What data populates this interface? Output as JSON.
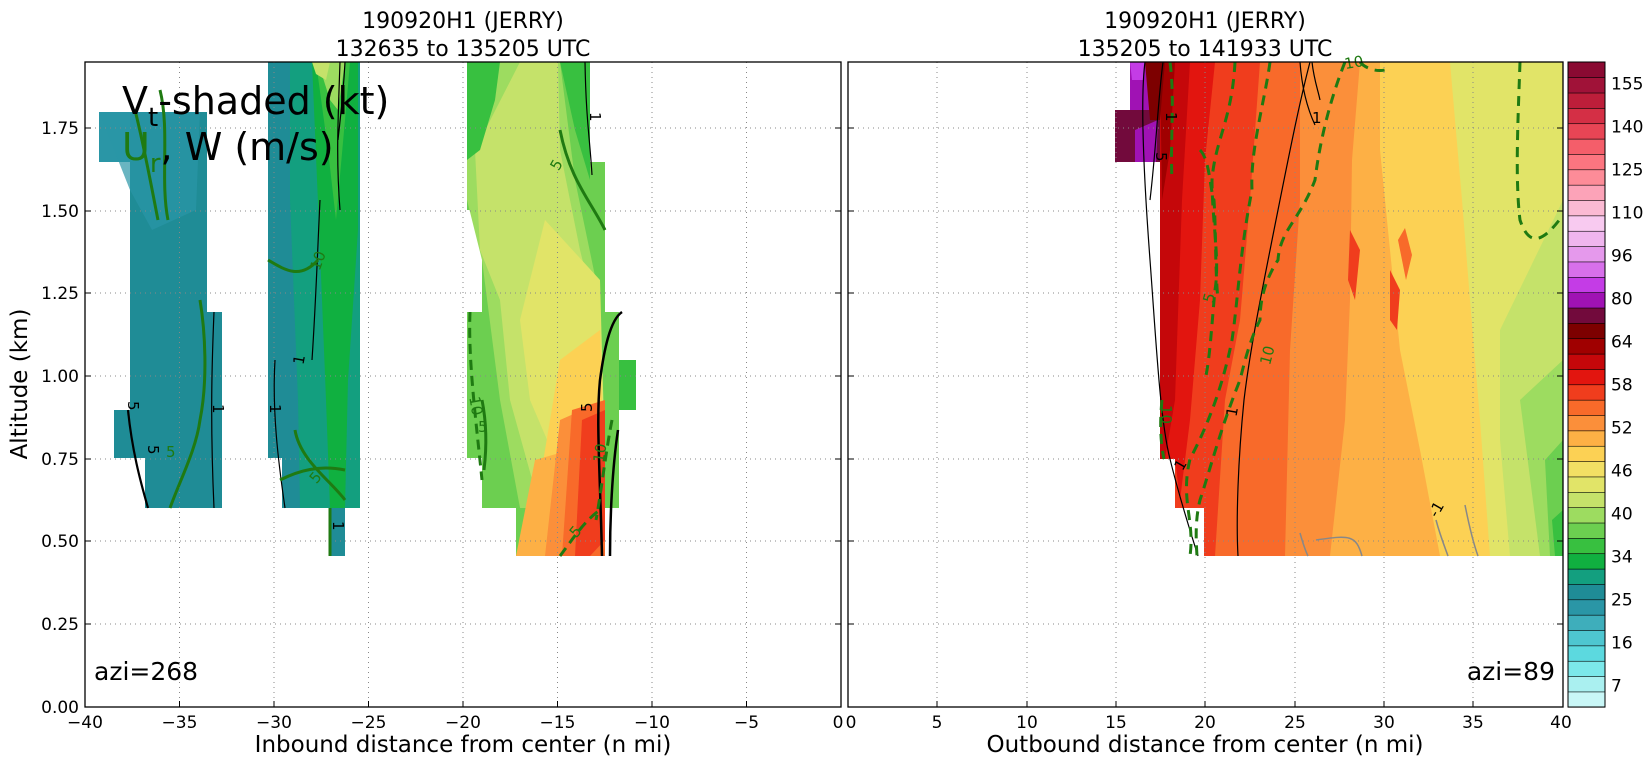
{
  "chart_data": [
    {
      "type": "heatmap",
      "title_line1": "190920H1 (JERRY)",
      "title_line2": "132635 to 135205 UTC",
      "xlabel": "Inbound distance from center (n mi)",
      "ylabel": "Altitude (km)",
      "xlim": [
        -40,
        0
      ],
      "ylim": [
        0,
        1.95
      ],
      "xticks": [
        "−40",
        "−35",
        "−30",
        "−25",
        "−20",
        "−15",
        "−10",
        "−5",
        "0"
      ],
      "xtick_values": [
        -40,
        -35,
        -30,
        -25,
        -20,
        -15,
        -10,
        -5,
        0
      ],
      "yticks": [
        "0.00",
        "0.25",
        "0.50",
        "0.75",
        "1.00",
        "1.25",
        "1.50",
        "1.75"
      ],
      "ytick_values": [
        0,
        0.25,
        0.5,
        0.75,
        1.0,
        1.25,
        1.5,
        1.75
      ],
      "grid": true,
      "annotation": "azi=268",
      "legend_text": {
        "line1": "V",
        "line1_sub": "t",
        "line1_rest": "-shaded (kt)",
        "line2": "U",
        "line2_sub": "r",
        "line2_rest": ", W (m/s)"
      },
      "shaded_regions": [
        {
          "x": [
            -37.5,
            -33.5
          ],
          "y": [
            0.6,
            1.8
          ],
          "vt_kt": 27
        },
        {
          "x": [
            -39.5,
            -37.5
          ],
          "y": [
            1.65,
            1.8
          ],
          "vt_kt": 25
        },
        {
          "x": [
            -30.5,
            -25.5
          ],
          "y": [
            0.6,
            1.95
          ],
          "vt_kt": 32
        },
        {
          "x": [
            -26.5,
            -25.5
          ],
          "y": [
            0.45,
            0.6
          ],
          "vt_kt": 34
        },
        {
          "x": [
            -28.0,
            -25.0
          ],
          "y": [
            0.9,
            1.95
          ],
          "vt_kt": 36
        },
        {
          "x": [
            -19.5,
            -11.0
          ],
          "y": [
            0.45,
            1.95
          ],
          "vt_kt": 42
        },
        {
          "x": [
            -15.0,
            -12.5
          ],
          "y": [
            0.45,
            1.0
          ],
          "vt_kt": 52
        }
      ],
      "contour_labels": [
        "1",
        "5",
        "10",
        "5",
        "1",
        "10",
        "5",
        "1",
        "5",
        "10",
        "5",
        "10",
        "5",
        "1",
        "5",
        "1"
      ]
    },
    {
      "type": "heatmap",
      "title_line1": "190920H1 (JERRY)",
      "title_line2": "135205 to 141933 UTC",
      "xlabel": "Outbound distance from center (n mi)",
      "ylabel": "",
      "xlim": [
        0,
        40
      ],
      "ylim": [
        0,
        1.95
      ],
      "xticks": [
        "0",
        "5",
        "10",
        "15",
        "20",
        "25",
        "30",
        "35",
        "40"
      ],
      "xtick_values": [
        0,
        5,
        10,
        15,
        20,
        25,
        30,
        35,
        40
      ],
      "grid": true,
      "annotation": "azi=89",
      "shaded_regions": [
        {
          "x": [
            17.5,
            40
          ],
          "y": [
            0.45,
            1.95
          ],
          "vt_kt": 44
        },
        {
          "x": [
            17.5,
            26.0
          ],
          "y": [
            0.45,
            1.95
          ],
          "vt_kt": 55
        },
        {
          "x": [
            15.5,
            17.5
          ],
          "y": [
            1.65,
            1.95
          ],
          "vt_kt": 64
        }
      ],
      "contour_labels": [
        "10",
        "5",
        "1",
        "5",
        "10",
        "1",
        "10",
        "1",
        "-1"
      ]
    }
  ],
  "colorbar": {
    "tick_labels": [
      "7",
      "16",
      "25",
      "34",
      "40",
      "46",
      "52",
      "58",
      "64",
      "80",
      "96",
      "110",
      "125",
      "140",
      "155"
    ],
    "colors": [
      "#c9f7f7",
      "#aaf0f0",
      "#7ce8ea",
      "#5cd9df",
      "#4ec6d0",
      "#3eaebb",
      "#2a96a6",
      "#1f8c96",
      "#139f7f",
      "#10b040",
      "#38c040",
      "#6ccf50",
      "#9ddc60",
      "#c5e26a",
      "#e1e468",
      "#f2df64",
      "#fcd154",
      "#fdb045",
      "#fb8f3a",
      "#f86a2a",
      "#f03d1d",
      "#e2150f",
      "#c5070a",
      "#a00000",
      "#7d0000",
      "#720a3c",
      "#a012b4",
      "#c43ce6",
      "#d770ea",
      "#e599ec",
      "#efb5ee",
      "#f8caf0",
      "#fbbad3",
      "#fca3b8",
      "#fd8c98",
      "#fc7580",
      "#f45e6a",
      "#e84555",
      "#d42f45",
      "#bd1e3a",
      "#a01238",
      "#8a0a32"
    ]
  }
}
